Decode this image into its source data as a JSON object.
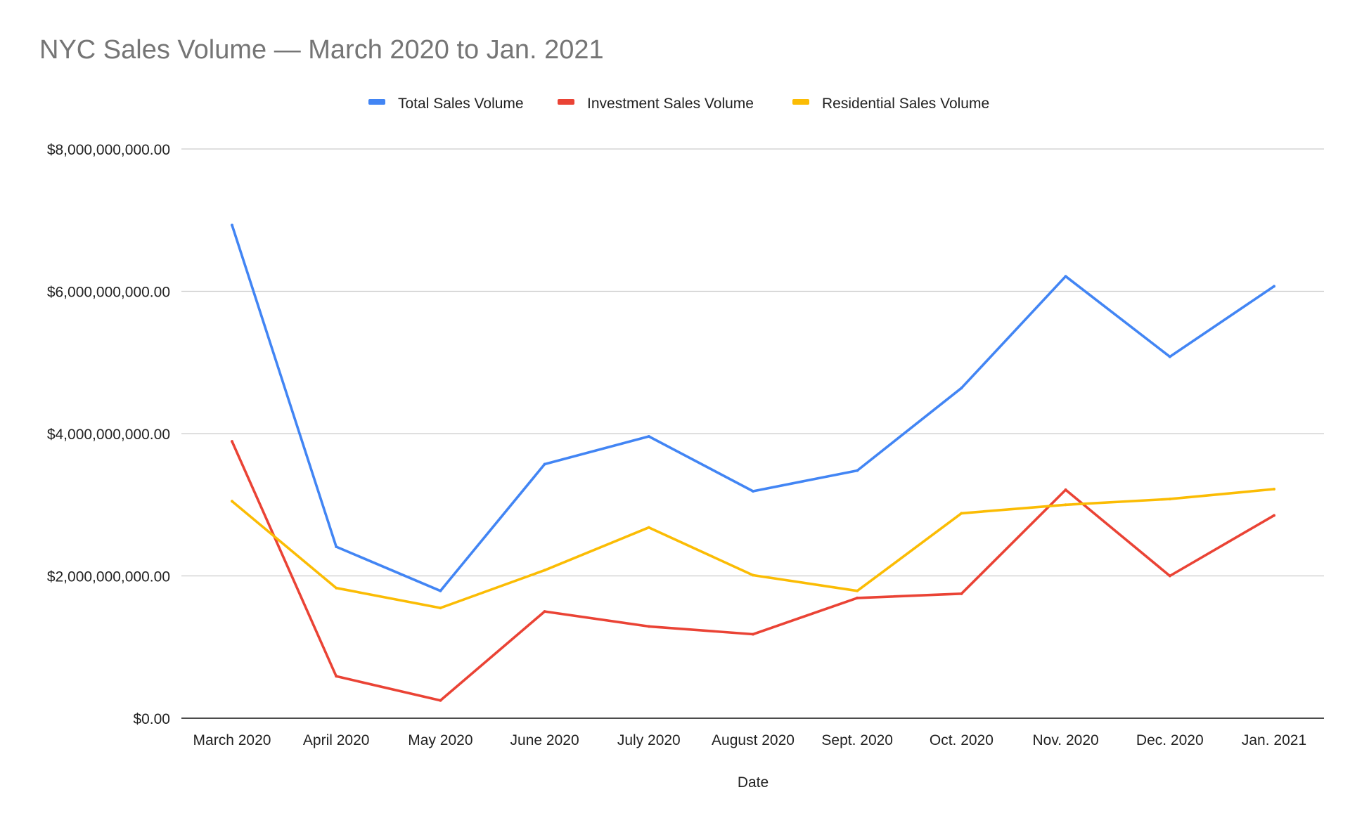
{
  "chart_data": {
    "type": "line",
    "title": "NYC Sales Volume — March 2020 to Jan. 2021",
    "xlabel": "Date",
    "ylabel": "",
    "categories": [
      "March 2020",
      "April 2020",
      "May 2020",
      "June 2020",
      "July 2020",
      "August 2020",
      "Sept. 2020",
      "Oct. 2020",
      "Nov. 2020",
      "Dec. 2020",
      "Jan. 2021"
    ],
    "ylim": [
      0,
      8000000000
    ],
    "yticks": [
      0,
      2000000000,
      4000000000,
      6000000000,
      8000000000
    ],
    "ytick_labels": [
      "$0.00",
      "$2,000,000,000.00",
      "$4,000,000,000.00",
      "$6,000,000,000.00",
      "$8,000,000,000.00"
    ],
    "grid": true,
    "legend_position": "top",
    "series": [
      {
        "name": "Total Sales Volume",
        "color": "#4285f4",
        "values": [
          6930000000,
          2410000000,
          1790000000,
          3570000000,
          3960000000,
          3190000000,
          3480000000,
          4640000000,
          6210000000,
          5080000000,
          6070000000
        ]
      },
      {
        "name": "Investment Sales Volume",
        "color": "#ea4335",
        "values": [
          3890000000,
          590000000,
          250000000,
          1500000000,
          1290000000,
          1180000000,
          1690000000,
          1750000000,
          3210000000,
          2000000000,
          2850000000
        ]
      },
      {
        "name": "Residential Sales Volume",
        "color": "#fbbc04",
        "values": [
          3050000000,
          1830000000,
          1550000000,
          2080000000,
          2680000000,
          2010000000,
          1790000000,
          2880000000,
          3000000000,
          3080000000,
          3220000000
        ]
      }
    ]
  }
}
